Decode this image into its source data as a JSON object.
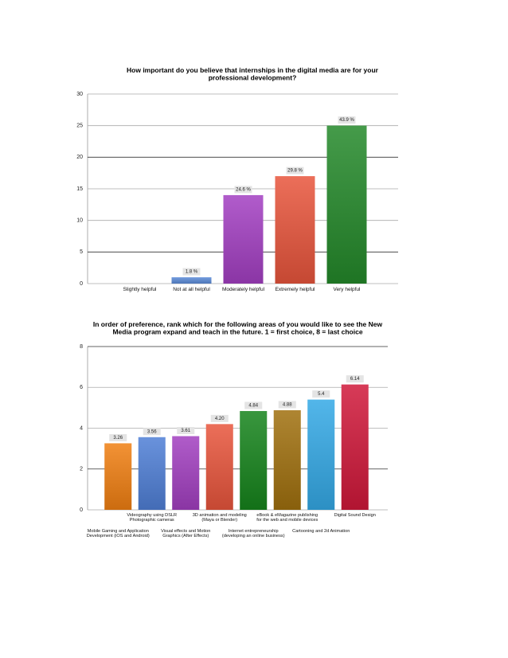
{
  "chart_data": [
    {
      "type": "bar",
      "title": "How important do you believe that internships in the digital media are for your professional development?",
      "categories": [
        "Slightly helpful",
        "Not at all helpful",
        "Moderately helpful",
        "Extremely helpful",
        "Very helpful"
      ],
      "values": [
        0,
        1,
        14,
        17,
        25
      ],
      "value_labels": [
        null,
        "1.8 %",
        "24.6 %",
        "29.8 %",
        "43.9 %"
      ],
      "colors": [
        "#5b8bd8",
        "#5b8bd8",
        "#a33fc2",
        "#e8553c",
        "#24892a"
      ],
      "ylim": [
        0,
        30
      ],
      "yticks": [
        0,
        5,
        10,
        15,
        20,
        25,
        30
      ],
      "grid": true
    },
    {
      "type": "bar",
      "title": "In order of preference, rank which for the following areas of you would like to see the New Media program expand and teach in the future. 1 = first choice, 8 = last choice",
      "categories": [
        "Mobile Gaming and Application Development (iOS and Android)",
        "Videography using DSLR Photographic cameras",
        "Visual effects and Motion Graphics (After Effects)",
        "3D animation and modeling (Maya or Blender)",
        "Internet entrepreneurship (developing an online business)",
        "eBook & eMagazine publishing for the web and mobile devices",
        "Cartooning and 2d Animation",
        "Digital Sound Design"
      ],
      "values": [
        3.26,
        3.56,
        3.61,
        4.2,
        4.84,
        4.88,
        5.4,
        6.14
      ],
      "value_labels": [
        "3.26",
        "3.56",
        "3.61",
        "4.20",
        "4.84",
        "4.88",
        "5.4",
        "6.14"
      ],
      "colors": [
        "#f07f12",
        "#4f7fd6",
        "#a23fc0",
        "#e8553c",
        "#16841c",
        "#a0700e",
        "#34a9e6",
        "#d0183a"
      ],
      "ylim": [
        0,
        8
      ],
      "yticks": [
        0,
        2,
        4,
        6,
        8
      ],
      "grid": true
    }
  ]
}
